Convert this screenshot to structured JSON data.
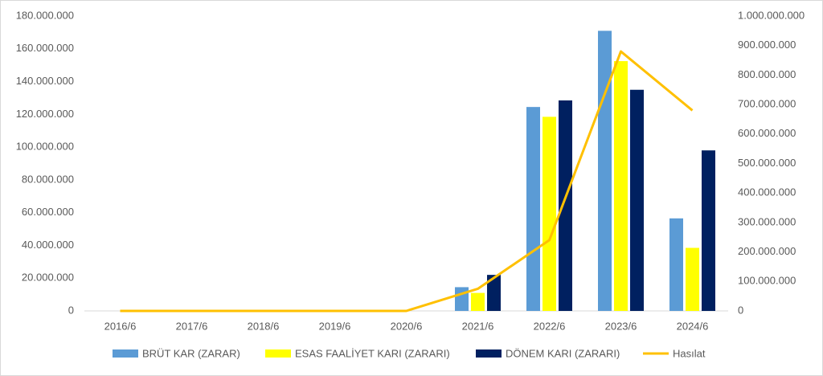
{
  "chart_data": {
    "type": "bar",
    "categories": [
      "2016/6",
      "2017/6",
      "2018/6",
      "2019/6",
      "2020/6",
      "2021/6",
      "2022/6",
      "2023/6",
      "2024/6"
    ],
    "series": [
      {
        "name": "BRÜT KAR (ZARAR)",
        "color": "#5b9bd5",
        "values": [
          0,
          0,
          0,
          0,
          0,
          14500000,
          124500000,
          171000000,
          56500000
        ]
      },
      {
        "name": "ESAS FAALİYET KARI (ZARARI)",
        "color": "#ffff00",
        "values": [
          0,
          0,
          0,
          0,
          0,
          11000000,
          118500000,
          152500000,
          38500000
        ]
      },
      {
        "name": "DÖNEM KARI (ZARARI)",
        "color": "#002060",
        "values": [
          0,
          0,
          0,
          0,
          0,
          22000000,
          128500000,
          135000000,
          98000000
        ]
      },
      {
        "name": "Hasılat",
        "color": "#ffc000",
        "type": "line",
        "axis": "y2",
        "values": [
          0,
          0,
          0,
          0,
          0,
          75000000,
          240000000,
          880000000,
          680000000
        ]
      }
    ],
    "ylim": [
      0,
      180000000
    ],
    "yticks": [
      0,
      {
        "value": 20000000,
        "label": "20.000.000"
      },
      {
        "value": 40000000,
        "label": "40.000.000"
      },
      {
        "value": 60000000,
        "label": "60.000.000"
      },
      {
        "value": 80000000,
        "label": "80.000.000"
      },
      {
        "value": 100000000,
        "label": "100.000.000"
      },
      {
        "value": 120000000,
        "label": "120.000.000"
      },
      {
        "value": 140000000,
        "label": "140.000.000"
      },
      {
        "value": 160000000,
        "label": "160.000.000"
      },
      {
        "value": 180000000,
        "label": "180.000.000"
      }
    ],
    "y2lim": [
      0,
      1000000000
    ],
    "y2ticks": [
      0,
      {
        "value": 100000000,
        "label": "100.000.000"
      },
      {
        "value": 200000000,
        "label": "200.000.000"
      },
      {
        "value": 300000000,
        "label": "300.000.000"
      },
      {
        "value": 400000000,
        "label": "400.000.000"
      },
      {
        "value": 500000000,
        "label": "500.000.000"
      },
      {
        "value": 600000000,
        "label": "600.000.000"
      },
      {
        "value": 700000000,
        "label": "700.000.000"
      },
      {
        "value": 800000000,
        "label": "800.000.000"
      },
      {
        "value": 900000000,
        "label": "900.000.000"
      },
      {
        "value": 1000000000,
        "label": "1.000.000.000"
      }
    ],
    "grid": false,
    "legend": "bottom"
  }
}
